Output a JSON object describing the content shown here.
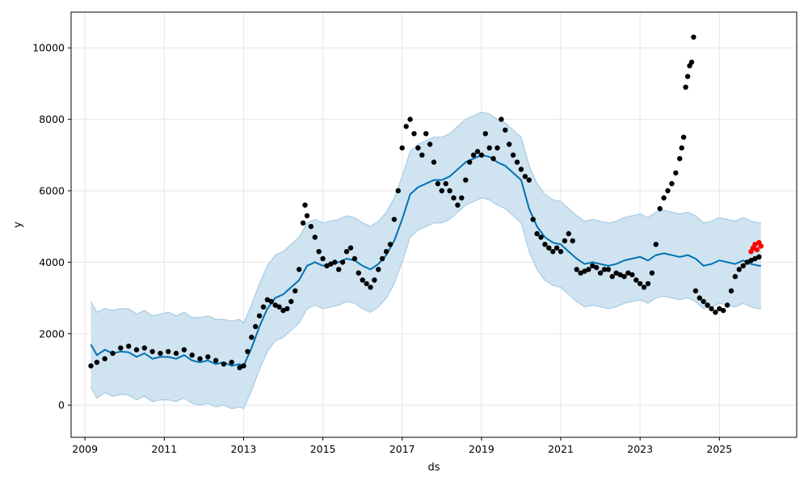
{
  "chart_data": {
    "type": "scatter",
    "title": "",
    "xlabel": "ds",
    "ylabel": "y",
    "xlim": [
      2008.65,
      2026.95
    ],
    "ylim": [
      -900,
      11000
    ],
    "grid": true,
    "colors": {
      "observed": "#000000",
      "recent": "#ff0000",
      "forecast": "#0072B2",
      "interval_fill": "#cfe3f1",
      "interval_edge": "#a9cbe4",
      "grid": "#e6e6e6"
    },
    "x_ticks": [
      {
        "value": 2009,
        "label": "2009"
      },
      {
        "value": 2011,
        "label": "2011"
      },
      {
        "value": 2013,
        "label": "2013"
      },
      {
        "value": 2015,
        "label": "2015"
      },
      {
        "value": 2017,
        "label": "2017"
      },
      {
        "value": 2019,
        "label": "2019"
      },
      {
        "value": 2021,
        "label": "2021"
      },
      {
        "value": 2023,
        "label": "2023"
      },
      {
        "value": 2025,
        "label": "2025"
      }
    ],
    "y_ticks": [
      {
        "value": 0,
        "label": "0"
      },
      {
        "value": 2000,
        "label": "2000"
      },
      {
        "value": 4000,
        "label": "4000"
      },
      {
        "value": 6000,
        "label": "6000"
      },
      {
        "value": 8000,
        "label": "8000"
      },
      {
        "value": 10000,
        "label": "10000"
      }
    ],
    "series": [
      {
        "role": "observed",
        "x": [
          2009.15,
          2009.3,
          2009.5,
          2009.7,
          2009.9,
          2010.1,
          2010.3,
          2010.5,
          2010.7,
          2010.9,
          2011.1,
          2011.3,
          2011.5,
          2011.7,
          2011.9,
          2012.1,
          2012.3,
          2012.5,
          2012.7,
          2012.9,
          2013.0,
          2013.1,
          2013.2,
          2013.3,
          2013.4,
          2013.5,
          2013.6,
          2013.7,
          2013.8,
          2013.9,
          2014.0,
          2014.1,
          2014.2,
          2014.3,
          2014.4,
          2014.5,
          2014.55,
          2014.6,
          2014.7,
          2014.8,
          2014.9,
          2015.0,
          2015.1,
          2015.2,
          2015.3,
          2015.4,
          2015.5,
          2015.6,
          2015.7,
          2015.8,
          2015.9,
          2016.0,
          2016.1,
          2016.2,
          2016.3,
          2016.4,
          2016.5,
          2016.6,
          2016.7,
          2016.8,
          2016.9,
          2017.0,
          2017.1,
          2017.2,
          2017.3,
          2017.4,
          2017.5,
          2017.6,
          2017.7,
          2017.8,
          2017.9,
          2018.0,
          2018.1,
          2018.2,
          2018.3,
          2018.4,
          2018.5,
          2018.6,
          2018.7,
          2018.8,
          2018.9,
          2019.0,
          2019.1,
          2019.2,
          2019.3,
          2019.4,
          2019.5,
          2019.6,
          2019.7,
          2019.8,
          2019.9,
          2020.0,
          2020.1,
          2020.2,
          2020.3,
          2020.4,
          2020.5,
          2020.6,
          2020.7,
          2020.8,
          2020.9,
          2021.0,
          2021.1,
          2021.2,
          2021.3,
          2021.4,
          2021.5,
          2021.6,
          2021.7,
          2021.8,
          2021.9,
          2022.0,
          2022.1,
          2022.2,
          2022.3,
          2022.4,
          2022.5,
          2022.6,
          2022.7,
          2022.8,
          2022.9,
          2023.0,
          2023.1,
          2023.2,
          2023.3,
          2023.4,
          2023.5,
          2023.6,
          2023.7,
          2023.8,
          2023.9,
          2024.0,
          2024.05,
          2024.1,
          2024.15,
          2024.2,
          2024.25,
          2024.3,
          2024.35,
          2024.4,
          2024.5,
          2024.6,
          2024.7,
          2024.8,
          2024.9,
          2025.0,
          2025.1,
          2025.2,
          2025.3,
          2025.4,
          2025.5,
          2025.6,
          2025.7,
          2025.8,
          2025.9,
          2026.0
        ],
        "y": [
          1100,
          1200,
          1300,
          1450,
          1600,
          1650,
          1550,
          1600,
          1500,
          1450,
          1500,
          1450,
          1550,
          1400,
          1300,
          1350,
          1250,
          1150,
          1200,
          1050,
          1100,
          1500,
          1900,
          2200,
          2500,
          2750,
          2950,
          2900,
          2800,
          2750,
          2650,
          2700,
          2900,
          3200,
          3800,
          5100,
          5600,
          5300,
          5000,
          4700,
          4300,
          4100,
          3900,
          3950,
          4000,
          3800,
          4000,
          4300,
          4400,
          4100,
          3700,
          3500,
          3400,
          3300,
          3500,
          3800,
          4100,
          4300,
          4500,
          5200,
          6000,
          7200,
          7800,
          8000,
          7600,
          7200,
          7000,
          7600,
          7300,
          6800,
          6200,
          6000,
          6200,
          6000,
          5800,
          5600,
          5800,
          6300,
          6800,
          7000,
          7100,
          7000,
          7600,
          7200,
          6900,
          7200,
          8000,
          7700,
          7300,
          7000,
          6800,
          6600,
          6400,
          6300,
          5200,
          4800,
          4700,
          4500,
          4400,
          4300,
          4400,
          4300,
          4600,
          4800,
          4600,
          3800,
          3700,
          3750,
          3800,
          3900,
          3850,
          3700,
          3800,
          3800,
          3600,
          3700,
          3650,
          3600,
          3700,
          3650,
          3500,
          3400,
          3300,
          3400,
          3700,
          4500,
          5500,
          5800,
          6000,
          6200,
          6500,
          6900,
          7200,
          7500,
          8900,
          9200,
          9500,
          9600,
          10300,
          3200,
          3000,
          2900,
          2800,
          2700,
          2600,
          2700,
          2650,
          2800,
          3200,
          3600,
          3800,
          3900,
          4000,
          4050,
          4100,
          4150
        ]
      },
      {
        "role": "recent",
        "x": [
          2025.8,
          2025.85,
          2025.9,
          2025.95,
          2026.0,
          2026.05
        ],
        "y": [
          4300,
          4400,
          4500,
          4350,
          4550,
          4450
        ]
      },
      {
        "role": "forecast",
        "x": [
          2009.15,
          2009.3,
          2009.5,
          2009.7,
          2009.9,
          2010.1,
          2010.3,
          2010.5,
          2010.7,
          2010.9,
          2011.1,
          2011.3,
          2011.5,
          2011.7,
          2011.9,
          2012.1,
          2012.3,
          2012.5,
          2012.7,
          2012.9,
          2013.0,
          2013.2,
          2013.4,
          2013.6,
          2013.8,
          2014.0,
          2014.2,
          2014.4,
          2014.6,
          2014.8,
          2015.0,
          2015.2,
          2015.4,
          2015.6,
          2015.8,
          2016.0,
          2016.2,
          2016.4,
          2016.6,
          2016.8,
          2017.0,
          2017.2,
          2017.4,
          2017.6,
          2017.8,
          2018.0,
          2018.2,
          2018.4,
          2018.6,
          2018.8,
          2019.0,
          2019.2,
          2019.4,
          2019.6,
          2019.8,
          2020.0,
          2020.2,
          2020.4,
          2020.6,
          2020.8,
          2021.0,
          2021.2,
          2021.4,
          2021.6,
          2021.8,
          2022.0,
          2022.2,
          2022.4,
          2022.6,
          2022.8,
          2023.0,
          2023.2,
          2023.4,
          2023.6,
          2023.8,
          2024.0,
          2024.2,
          2024.4,
          2024.6,
          2024.8,
          2025.0,
          2025.2,
          2025.4,
          2025.6,
          2025.8,
          2026.0,
          2026.05
        ],
        "y": [
          1700,
          1400,
          1550,
          1450,
          1500,
          1480,
          1350,
          1450,
          1300,
          1350,
          1350,
          1300,
          1400,
          1250,
          1200,
          1250,
          1150,
          1200,
          1100,
          1150,
          1100,
          1600,
          2200,
          2700,
          3000,
          3100,
          3300,
          3500,
          3900,
          4000,
          3900,
          3950,
          4000,
          4100,
          4050,
          3900,
          3800,
          3950,
          4200,
          4600,
          5200,
          5900,
          6100,
          6200,
          6300,
          6300,
          6400,
          6600,
          6800,
          6900,
          7000,
          6950,
          6800,
          6700,
          6500,
          6300,
          5500,
          5000,
          4700,
          4550,
          4500,
          4300,
          4100,
          3950,
          4000,
          3950,
          3900,
          3950,
          4050,
          4100,
          4150,
          4050,
          4200,
          4250,
          4200,
          4150,
          4200,
          4100,
          3900,
          3950,
          4050,
          4000,
          3950,
          4050,
          3950,
          3900,
          3900
        ]
      },
      {
        "role": "interval",
        "x": [
          2009.15,
          2009.3,
          2009.5,
          2009.7,
          2009.9,
          2010.1,
          2010.3,
          2010.5,
          2010.7,
          2010.9,
          2011.1,
          2011.3,
          2011.5,
          2011.7,
          2011.9,
          2012.1,
          2012.3,
          2012.5,
          2012.7,
          2012.9,
          2013.0,
          2013.2,
          2013.4,
          2013.6,
          2013.8,
          2014.0,
          2014.2,
          2014.4,
          2014.6,
          2014.8,
          2015.0,
          2015.2,
          2015.4,
          2015.6,
          2015.8,
          2016.0,
          2016.2,
          2016.4,
          2016.6,
          2016.8,
          2017.0,
          2017.2,
          2017.4,
          2017.6,
          2017.8,
          2018.0,
          2018.2,
          2018.4,
          2018.6,
          2018.8,
          2019.0,
          2019.2,
          2019.4,
          2019.6,
          2019.8,
          2020.0,
          2020.2,
          2020.4,
          2020.6,
          2020.8,
          2021.0,
          2021.2,
          2021.4,
          2021.6,
          2021.8,
          2022.0,
          2022.2,
          2022.4,
          2022.6,
          2022.8,
          2023.0,
          2023.2,
          2023.4,
          2023.6,
          2023.8,
          2024.0,
          2024.2,
          2024.4,
          2024.6,
          2024.8,
          2025.0,
          2025.2,
          2025.4,
          2025.6,
          2025.8,
          2026.0,
          2026.05
        ],
        "upper": [
          2900,
          2600,
          2700,
          2650,
          2700,
          2700,
          2550,
          2650,
          2500,
          2550,
          2600,
          2500,
          2600,
          2450,
          2450,
          2500,
          2400,
          2400,
          2350,
          2400,
          2300,
          2800,
          3400,
          3900,
          4200,
          4300,
          4500,
          4700,
          5100,
          5200,
          5100,
          5150,
          5200,
          5300,
          5250,
          5100,
          5000,
          5150,
          5400,
          5800,
          6400,
          7100,
          7300,
          7400,
          7500,
          7500,
          7600,
          7800,
          8000,
          8100,
          8200,
          8150,
          8000,
          7900,
          7700,
          7500,
          6700,
          6200,
          5900,
          5750,
          5700,
          5500,
          5300,
          5150,
          5200,
          5150,
          5100,
          5150,
          5250,
          5300,
          5350,
          5250,
          5400,
          5450,
          5400,
          5350,
          5400,
          5300,
          5100,
          5150,
          5250,
          5200,
          5150,
          5250,
          5150,
          5100,
          5100
        ],
        "lower": [
          500,
          200,
          350,
          250,
          300,
          280,
          150,
          250,
          100,
          150,
          150,
          100,
          200,
          50,
          0,
          50,
          -50,
          0,
          -100,
          -50,
          -100,
          400,
          1000,
          1500,
          1800,
          1900,
          2100,
          2300,
          2700,
          2800,
          2700,
          2750,
          2800,
          2900,
          2850,
          2700,
          2600,
          2750,
          3000,
          3400,
          4000,
          4700,
          4900,
          5000,
          5100,
          5100,
          5200,
          5400,
          5600,
          5700,
          5800,
          5750,
          5600,
          5500,
          5300,
          5100,
          4300,
          3800,
          3500,
          3350,
          3300,
          3100,
          2900,
          2750,
          2800,
          2750,
          2700,
          2750,
          2850,
          2900,
          2950,
          2850,
          3000,
          3050,
          3000,
          2950,
          3000,
          2900,
          2700,
          2750,
          2850,
          2800,
          2750,
          2850,
          2750,
          2700,
          2700
        ]
      }
    ]
  }
}
